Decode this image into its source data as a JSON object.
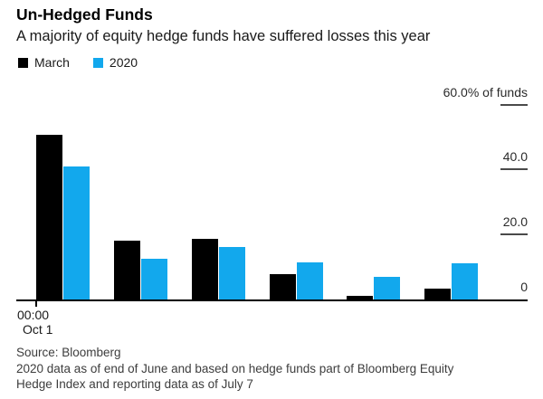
{
  "header": {
    "title": "Un-Hedged Funds",
    "subtitle": "A majority of equity hedge funds have suffered losses this year"
  },
  "legend": {
    "items": [
      {
        "label": "March",
        "color": "#000000"
      },
      {
        "label": "2020",
        "color": "#12a8ed"
      }
    ]
  },
  "chart_data": {
    "type": "bar",
    "categories": [
      "",
      "",
      "",
      "",
      "",
      ""
    ],
    "series": [
      {
        "name": "March",
        "color": "#000000",
        "values": [
          50.7,
          18.1,
          18.7,
          7.8,
          1.1,
          3.3
        ]
      },
      {
        "name": "2020",
        "color": "#12a8ed",
        "values": [
          41.0,
          12.5,
          16.2,
          11.4,
          7.0,
          11.1
        ]
      }
    ],
    "title": "Un-Hedged Funds",
    "subtitle": "A majority of equity hedge funds have suffered losses this year",
    "xlabel": "",
    "ylabel": "% of funds",
    "ylim": [
      0,
      60
    ],
    "grid": false,
    "legend_position": "top-left",
    "y_ticks": [
      {
        "label": "60.0% of funds",
        "value": 60,
        "show_tick": true
      },
      {
        "label": "40.0",
        "value": 40,
        "show_tick": true
      },
      {
        "label": "20.0",
        "value": 20,
        "show_tick": true
      },
      {
        "label": "0",
        "value": 0,
        "show_tick": false
      }
    ],
    "x_axis": {
      "tick_labels": [
        "00:00",
        "Oct 1"
      ]
    }
  },
  "footer": {
    "source": "Source: Bloomberg",
    "note_lines": [
      "2020 data as of end of June and based on hedge funds part of Bloomberg Equity",
      "Hedge Index and reporting data as of July 7"
    ]
  }
}
